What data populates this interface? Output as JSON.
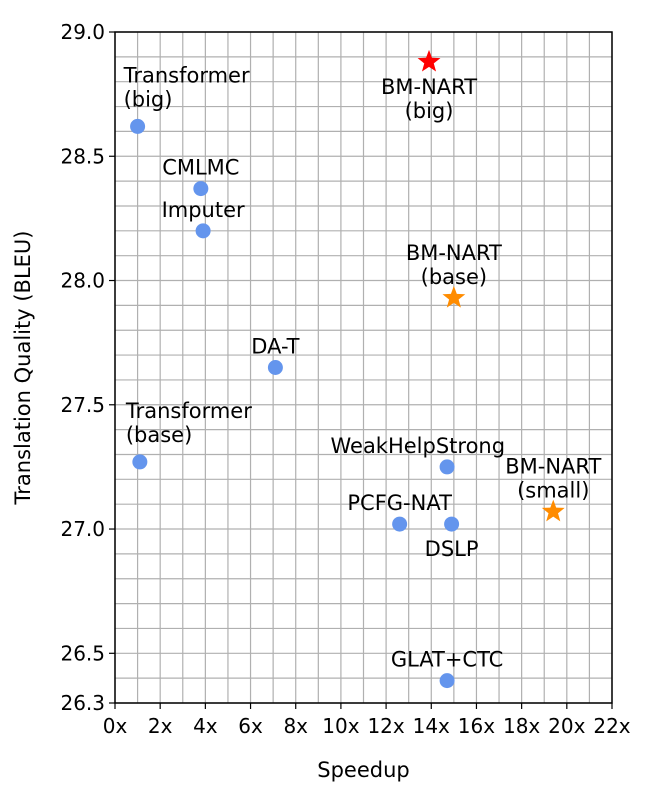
{
  "chart_data": {
    "type": "scatter",
    "xlabel": "Speedup",
    "ylabel": "Translation Quality (BLEU)",
    "xlim": [
      0,
      22
    ],
    "ylim": [
      26.3,
      29.0
    ],
    "x_ticks": [
      "0x",
      "2x",
      "4x",
      "6x",
      "8x",
      "10x",
      "12x",
      "14x",
      "16x",
      "18x",
      "20x",
      "22x"
    ],
    "y_ticks": [
      "26.3",
      "26.5",
      "27.0",
      "27.5",
      "28.0",
      "28.5",
      "29.0"
    ],
    "grid": true,
    "points": [
      {
        "label": [
          "Transformer",
          "(big)"
        ],
        "x": 1.0,
        "y": 28.62,
        "marker": "circle",
        "color": "#6495ed",
        "label_pos": "above-right"
      },
      {
        "label": [
          "CMLMC"
        ],
        "x": 3.8,
        "y": 28.37,
        "marker": "circle",
        "color": "#6495ed",
        "label_pos": "above"
      },
      {
        "label": [
          "Imputer"
        ],
        "x": 3.9,
        "y": 28.2,
        "marker": "circle",
        "color": "#6495ed",
        "label_pos": "above"
      },
      {
        "label": [
          "DA-T"
        ],
        "x": 7.1,
        "y": 27.65,
        "marker": "circle",
        "color": "#6495ed",
        "label_pos": "above"
      },
      {
        "label": [
          "Transformer",
          "(base)"
        ],
        "x": 1.1,
        "y": 27.27,
        "marker": "circle",
        "color": "#6495ed",
        "label_pos": "above-right"
      },
      {
        "label": [
          "WeakHelpStrong"
        ],
        "x": 14.7,
        "y": 27.25,
        "marker": "circle",
        "color": "#6495ed",
        "label_pos": "above-left"
      },
      {
        "label": [
          "PCFG-NAT"
        ],
        "x": 12.6,
        "y": 27.02,
        "marker": "circle",
        "color": "#6495ed",
        "label_pos": "above"
      },
      {
        "label": [
          "DSLP"
        ],
        "x": 14.9,
        "y": 27.02,
        "marker": "circle",
        "color": "#6495ed",
        "label_pos": "below"
      },
      {
        "label": [
          "GLAT+CTC"
        ],
        "x": 14.7,
        "y": 26.39,
        "marker": "circle",
        "color": "#6495ed",
        "label_pos": "above"
      },
      {
        "label": [
          "BM-NART",
          "(big)"
        ],
        "x": 13.9,
        "y": 28.88,
        "marker": "star",
        "color": "#ff0000",
        "label_pos": "below"
      },
      {
        "label": [
          "BM-NART",
          "(base)"
        ],
        "x": 15.0,
        "y": 27.93,
        "marker": "star",
        "color": "#ff8c00",
        "label_pos": "above"
      },
      {
        "label": [
          "BM-NART",
          "(small)"
        ],
        "x": 19.4,
        "y": 27.07,
        "marker": "star",
        "color": "#ff8c00",
        "label_pos": "above"
      }
    ]
  }
}
